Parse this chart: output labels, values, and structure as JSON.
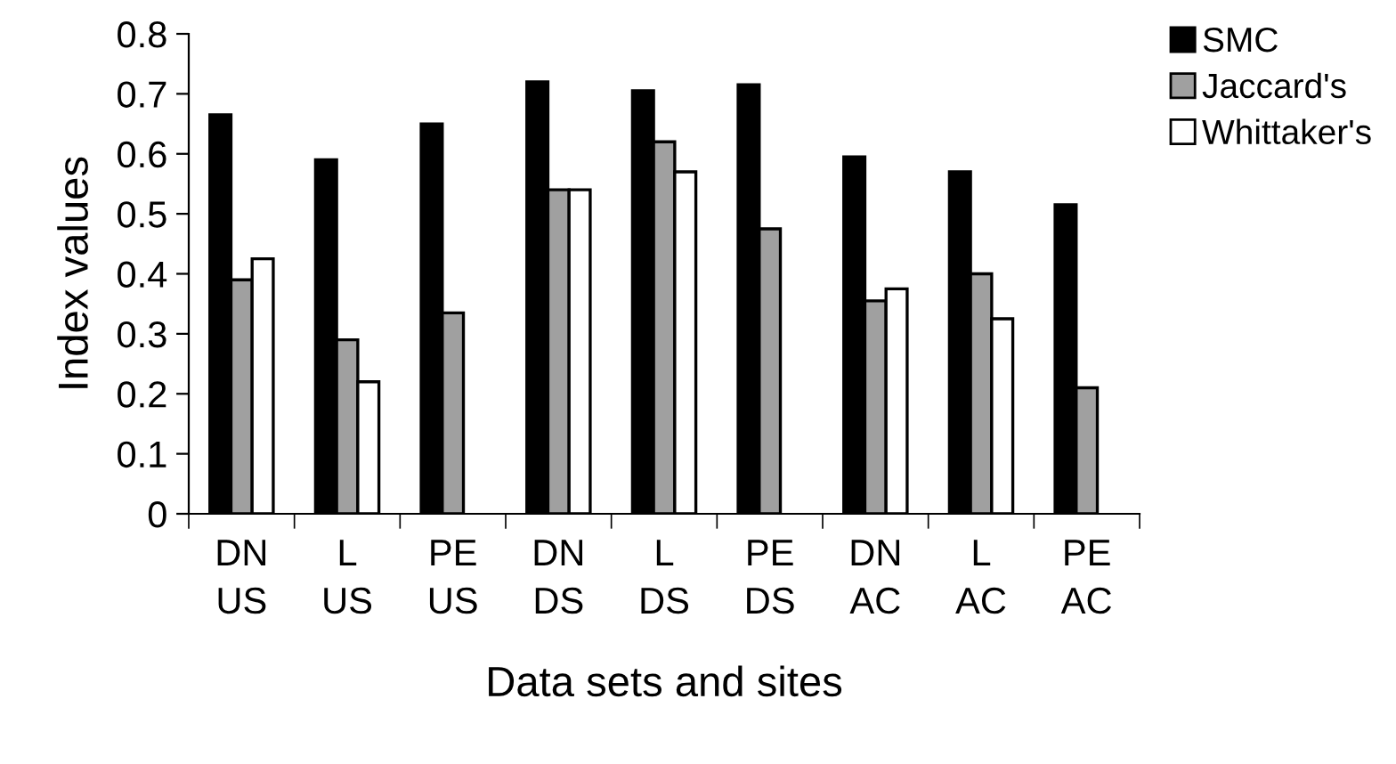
{
  "chart_data": {
    "type": "bar",
    "xlabel": "Data sets and sites",
    "ylabel": "Index values",
    "categories": [
      "DN\nUS",
      "L\nUS",
      "PE\nUS",
      "DN\nDS",
      "L\nDS",
      "PE\nDS",
      "DN\nAC",
      "L\nAC",
      "PE\nAC"
    ],
    "series": [
      {
        "name": "SMC",
        "color": "#000000",
        "values": [
          0.665,
          0.59,
          0.65,
          0.72,
          0.705,
          0.715,
          0.595,
          0.57,
          0.515
        ]
      },
      {
        "name": "Jaccard's",
        "color": "#a0a0a0",
        "values": [
          0.39,
          0.29,
          0.335,
          0.54,
          0.62,
          0.475,
          0.355,
          0.4,
          0.21
        ]
      },
      {
        "name": "Whittaker's",
        "color": "#ffffff",
        "values": [
          0.425,
          0.22,
          null,
          0.54,
          0.57,
          null,
          0.375,
          0.325,
          null
        ]
      }
    ],
    "ylim": [
      0,
      0.8
    ],
    "yticks": [
      {
        "value": 0,
        "label": "0"
      },
      0.1,
      0.2,
      0.3,
      0.4,
      0.5,
      0.6,
      0.7,
      0.8
    ],
    "grid": false,
    "legend": "top right"
  }
}
